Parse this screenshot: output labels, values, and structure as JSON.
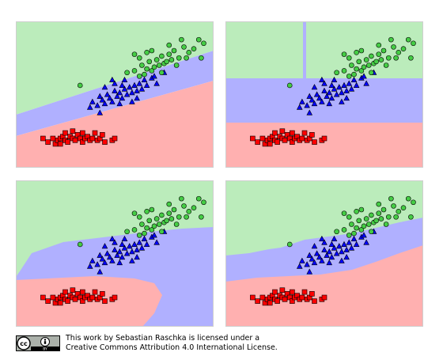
{
  "license": {
    "line1": "This work by Sebastian Raschka is licensed under a",
    "line2": "Creative Commons Attribution 4.0 International License.",
    "badge_cc": "cc",
    "badge_by": "BY"
  },
  "colors": {
    "region_class0": "#ffb0b0",
    "region_class1": "#b0b0ff",
    "region_class2": "#bbecbb",
    "marker_class0": "#ff0000",
    "marker_class1": "#0000ff",
    "marker_class2": "#44cc44",
    "marker_edge": "#000000"
  },
  "chart_data": {
    "type": "scatter",
    "layout": "2x2",
    "xlim": [
      0,
      8
    ],
    "ylim": [
      0,
      8
    ],
    "classes": [
      {
        "id": 0,
        "marker": "square",
        "color": "#ff0000"
      },
      {
        "id": 1,
        "marker": "triangle",
        "color": "#0000ff"
      },
      {
        "id": 2,
        "marker": "circle",
        "color": "#44cc44"
      }
    ],
    "points": {
      "class0": [
        [
          1.1,
          1.6
        ],
        [
          1.3,
          1.4
        ],
        [
          1.5,
          1.6
        ],
        [
          1.6,
          1.3
        ],
        [
          1.7,
          1.5
        ],
        [
          1.8,
          1.6
        ],
        [
          1.9,
          1.7
        ],
        [
          2.0,
          1.5
        ],
        [
          2.1,
          1.4
        ],
        [
          2.2,
          1.7
        ],
        [
          2.3,
          1.6
        ],
        [
          2.4,
          1.5
        ],
        [
          2.5,
          1.8
        ],
        [
          2.6,
          1.6
        ],
        [
          2.7,
          1.4
        ],
        [
          2.8,
          1.6
        ],
        [
          2.9,
          1.7
        ],
        [
          3.0,
          1.5
        ],
        [
          3.1,
          1.6
        ],
        [
          3.2,
          1.9
        ],
        [
          3.3,
          1.5
        ],
        [
          3.4,
          1.6
        ],
        [
          3.6,
          1.4
        ],
        [
          3.9,
          1.5
        ],
        [
          4.0,
          1.6
        ],
        [
          2.3,
          2.0
        ],
        [
          2.7,
          1.9
        ],
        [
          2.0,
          1.9
        ],
        [
          3.5,
          1.8
        ],
        [
          1.8,
          1.3
        ]
      ],
      "class1": [
        [
          3.0,
          3.3
        ],
        [
          3.1,
          3.6
        ],
        [
          3.3,
          3.4
        ],
        [
          3.4,
          3.9
        ],
        [
          3.5,
          3.7
        ],
        [
          3.6,
          3.5
        ],
        [
          3.7,
          4.0
        ],
        [
          3.8,
          3.8
        ],
        [
          3.9,
          3.6
        ],
        [
          4.0,
          4.2
        ],
        [
          4.1,
          3.9
        ],
        [
          4.2,
          4.1
        ],
        [
          4.3,
          3.8
        ],
        [
          4.4,
          4.3
        ],
        [
          4.5,
          4.0
        ],
        [
          4.6,
          4.4
        ],
        [
          4.7,
          4.1
        ],
        [
          4.8,
          4.5
        ],
        [
          4.9,
          4.2
        ],
        [
          5.0,
          4.6
        ],
        [
          5.1,
          4.3
        ],
        [
          5.2,
          4.8
        ],
        [
          5.3,
          4.5
        ],
        [
          5.5,
          4.9
        ],
        [
          5.7,
          4.6
        ],
        [
          6.0,
          5.2
        ],
        [
          4.0,
          4.6
        ],
        [
          4.4,
          4.8
        ],
        [
          3.6,
          4.4
        ],
        [
          4.9,
          3.8
        ],
        [
          3.4,
          3.0
        ],
        [
          5.6,
          5.0
        ],
        [
          4.2,
          3.5
        ],
        [
          4.7,
          3.6
        ],
        [
          3.9,
          4.8
        ],
        [
          4.3,
          4.5
        ]
      ],
      "class2": [
        [
          2.6,
          4.5
        ],
        [
          4.5,
          5.2
        ],
        [
          4.8,
          5.3
        ],
        [
          5.0,
          5.0
        ],
        [
          5.1,
          5.6
        ],
        [
          5.2,
          5.1
        ],
        [
          5.3,
          5.4
        ],
        [
          5.4,
          5.8
        ],
        [
          5.5,
          5.3
        ],
        [
          5.6,
          5.5
        ],
        [
          5.7,
          5.9
        ],
        [
          5.8,
          5.6
        ],
        [
          5.9,
          6.1
        ],
        [
          6.0,
          5.7
        ],
        [
          6.1,
          5.8
        ],
        [
          6.2,
          6.2
        ],
        [
          6.3,
          5.9
        ],
        [
          6.4,
          6.4
        ],
        [
          6.5,
          5.6
        ],
        [
          6.6,
          6.0
        ],
        [
          6.8,
          6.6
        ],
        [
          6.9,
          6.0
        ],
        [
          7.0,
          6.3
        ],
        [
          7.2,
          6.5
        ],
        [
          7.5,
          6.0
        ],
        [
          7.6,
          6.8
        ],
        [
          7.4,
          7.0
        ],
        [
          6.7,
          7.0
        ],
        [
          5.0,
          6.0
        ],
        [
          5.5,
          6.4
        ],
        [
          5.9,
          5.2
        ],
        [
          4.8,
          6.2
        ],
        [
          6.2,
          6.7
        ],
        [
          5.3,
          6.3
        ]
      ]
    },
    "subplots": [
      {
        "id": "top-left",
        "boundary": "linear"
      },
      {
        "id": "top-right",
        "boundary": "axis-aligned"
      },
      {
        "id": "bottom-left",
        "boundary": "smooth-curved"
      },
      {
        "id": "bottom-right",
        "boundary": "jagged"
      }
    ]
  }
}
